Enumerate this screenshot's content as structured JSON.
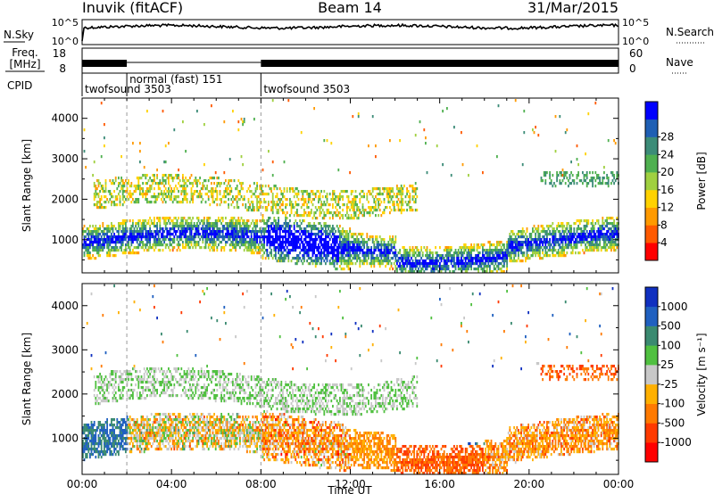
{
  "header": {
    "radar": "Inuvik (fitACF)",
    "beam": "Beam 14",
    "date": "31/Mar/2015"
  },
  "top_panels": {
    "nsky_label": "N.Sky",
    "nsky_ticks": [
      "10^5",
      "10^0"
    ],
    "nsearch_label": "N.Search",
    "nsearch_ticks": [
      "10^5",
      "10^0"
    ],
    "freq_label_1": "Freq.",
    "freq_label_2": "[MHz]",
    "freq_ticks": [
      "18",
      "8"
    ],
    "nave_label": "Nave",
    "nave_ticks": [
      "60",
      "0"
    ],
    "cpid_label": "CPID",
    "cpid_modes": [
      {
        "label": "twofsound 3503",
        "start_h": 0,
        "end_h": 2
      },
      {
        "label": "normal (fast) 151",
        "start_h": 2,
        "end_h": 8
      },
      {
        "label": "twofsound 3503",
        "start_h": 8,
        "end_h": 24
      }
    ]
  },
  "chart_data": [
    {
      "type": "heatmap",
      "name": "Power",
      "ylabel": "Slant Range [km]",
      "ylim": [
        180,
        4500
      ],
      "yticks": [
        1000,
        2000,
        3000,
        4000
      ],
      "xlim": [
        0,
        24
      ],
      "colorbar": {
        "label": "Power [dB]",
        "range": [
          0,
          32
        ],
        "ticks": [
          "4",
          "8",
          "12",
          "16",
          "20",
          "24",
          "28"
        ],
        "colors": [
          "#0000ff",
          "#1f5fb4",
          "#3c8c78",
          "#4fb050",
          "#a0d040",
          "#ffd200",
          "#ff9a00",
          "#ff5a00",
          "#ff0000"
        ]
      }
    },
    {
      "type": "heatmap",
      "name": "Velocity",
      "ylabel": "Slant Range [km]",
      "ylim": [
        180,
        4500
      ],
      "yticks": [
        1000,
        2000,
        3000,
        4000
      ],
      "xlim": [
        0,
        24
      ],
      "xlabel": "Time UT",
      "xticks": [
        "00:00",
        "04:00",
        "08:00",
        "12:00",
        "16:00",
        "20:00",
        "00:00"
      ],
      "colorbar": {
        "label": "Velocity [m s⁻¹]",
        "ticks": [
          "1000",
          "500",
          "100",
          "25",
          "-25",
          "-100",
          "-500",
          "-1000"
        ],
        "colors": [
          "#1030c0",
          "#2060c0",
          "#3a8a70",
          "#50c040",
          "#c8c8c8",
          "#ffb000",
          "#ff7a00",
          "#ff3a00",
          "#ff0000"
        ]
      }
    }
  ]
}
